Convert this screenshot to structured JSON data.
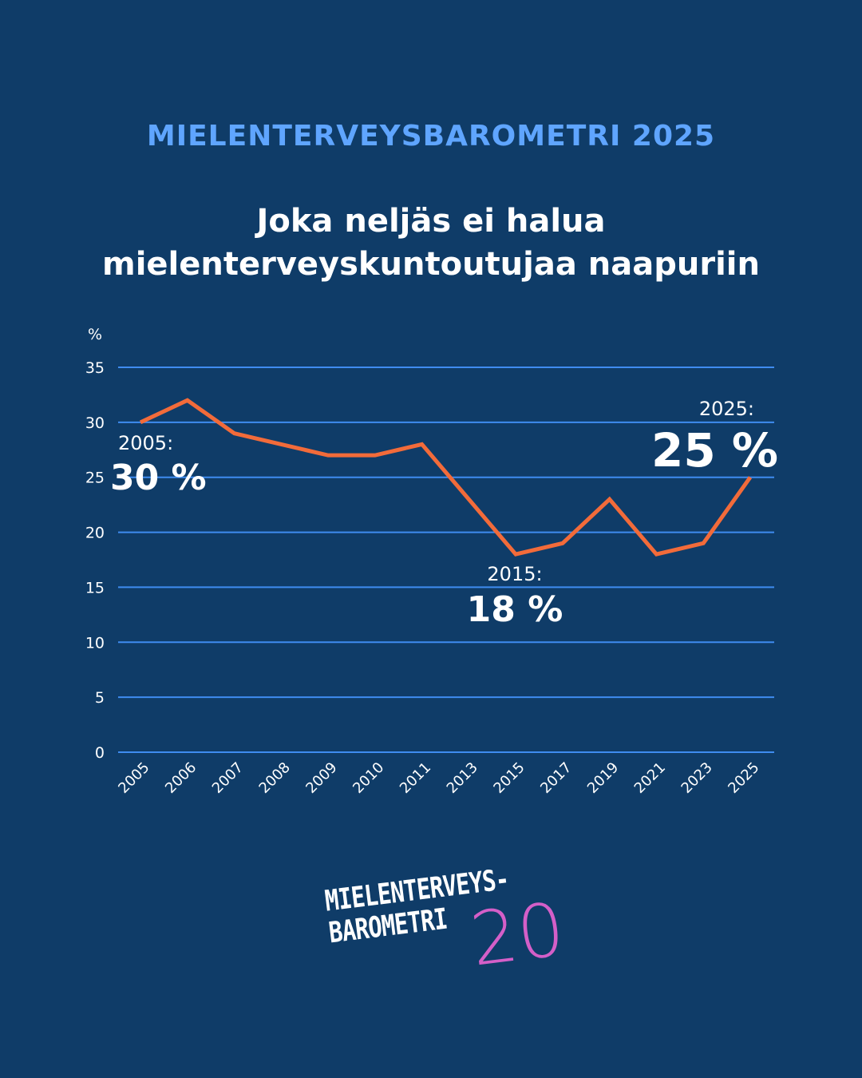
{
  "header": {
    "kicker": "MIELENTERVEYSBAROMETRI 2025",
    "title_line1": "Joka neljäs ei halua",
    "title_line2": "mielenterveyskuntoutujaa naapuriin"
  },
  "chart_data": {
    "type": "line",
    "title": "Joka neljäs ei halua mielenterveyskuntoutujaa naapuriin",
    "ylabel": "%",
    "ylim": [
      0,
      35
    ],
    "yticks": [
      0,
      5,
      10,
      15,
      20,
      25,
      30,
      35
    ],
    "grid": true,
    "categories": [
      "2005",
      "2006",
      "2007",
      "2008",
      "2009",
      "2010",
      "2011",
      "2013",
      "2015",
      "2017",
      "2019",
      "2021",
      "2023",
      "2025"
    ],
    "values": [
      30,
      32,
      29,
      28,
      27,
      27,
      28,
      23,
      18,
      19,
      23,
      18,
      19,
      25
    ],
    "line_color": "#f26b3a",
    "grid_color": "#3f8cf0",
    "annotations": [
      {
        "category": "2005",
        "year_label": "2005:",
        "value_label": "30 %"
      },
      {
        "category": "2015",
        "year_label": "2015:",
        "value_label": "18 %"
      },
      {
        "category": "2025",
        "year_label": "2025:",
        "value_label": "25 %"
      }
    ]
  },
  "logo": {
    "line1": "MIELENTERVEYS-",
    "line2": "BAROMETRI",
    "number": "20"
  }
}
